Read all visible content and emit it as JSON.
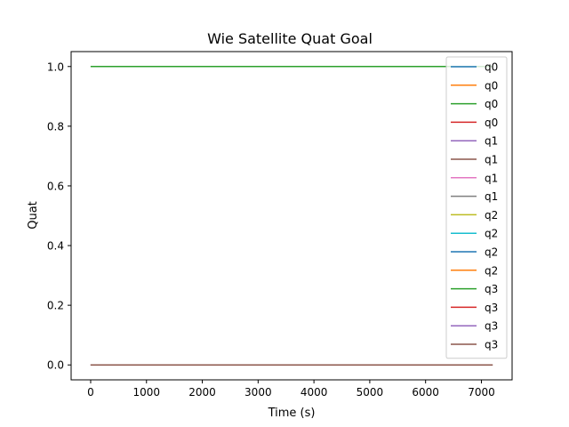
{
  "chart_data": {
    "type": "line",
    "title": "Wie Satellite Quat Goal",
    "xlabel": "Time (s)",
    "ylabel": "Quat",
    "xlim": [
      -350,
      7550
    ],
    "ylim": [
      -0.05,
      1.05
    ],
    "xticks": [
      "0",
      "1000",
      "2000",
      "3000",
      "4000",
      "5000",
      "6000",
      "7000"
    ],
    "xtick_values": [
      0,
      1000,
      2000,
      3000,
      4000,
      5000,
      6000,
      7000
    ],
    "yticks": [
      "0.0",
      "0.2",
      "0.4",
      "0.6",
      "0.8",
      "1.0"
    ],
    "ytick_values": [
      0.0,
      0.2,
      0.4,
      0.6,
      0.8,
      1.0
    ],
    "grid": false,
    "legend_position": "top-right",
    "x": [
      0,
      7200
    ],
    "series": [
      {
        "name": "q0",
        "color": "#1f77b4",
        "values": [
          1.0,
          1.0
        ]
      },
      {
        "name": "q0",
        "color": "#ff7f0e",
        "values": [
          1.0,
          1.0
        ]
      },
      {
        "name": "q0",
        "color": "#2ca02c",
        "values": [
          1.0,
          1.0
        ]
      },
      {
        "name": "q0",
        "color": "#d62728",
        "values": [
          0.0,
          0.0
        ]
      },
      {
        "name": "q1",
        "color": "#9467bd",
        "values": [
          0.0,
          0.0
        ]
      },
      {
        "name": "q1",
        "color": "#8c564b",
        "values": [
          0.0,
          0.0
        ]
      },
      {
        "name": "q1",
        "color": "#e377c2",
        "values": [
          0.0,
          0.0
        ]
      },
      {
        "name": "q1",
        "color": "#7f7f7f",
        "values": [
          0.0,
          0.0
        ]
      },
      {
        "name": "q2",
        "color": "#bcbd22",
        "values": [
          0.0,
          0.0
        ]
      },
      {
        "name": "q2",
        "color": "#17becf",
        "values": [
          0.0,
          0.0
        ]
      },
      {
        "name": "q2",
        "color": "#1f77b4",
        "values": [
          0.0,
          0.0
        ]
      },
      {
        "name": "q2",
        "color": "#ff7f0e",
        "values": [
          0.0,
          0.0
        ]
      },
      {
        "name": "q3",
        "color": "#2ca02c",
        "values": [
          1.0,
          1.0
        ]
      },
      {
        "name": "q3",
        "color": "#d62728",
        "values": [
          0.0,
          0.0
        ]
      },
      {
        "name": "q3",
        "color": "#9467bd",
        "values": [
          0.0,
          0.0
        ]
      },
      {
        "name": "q3",
        "color": "#8c564b",
        "values": [
          0.0,
          0.0
        ]
      }
    ]
  }
}
